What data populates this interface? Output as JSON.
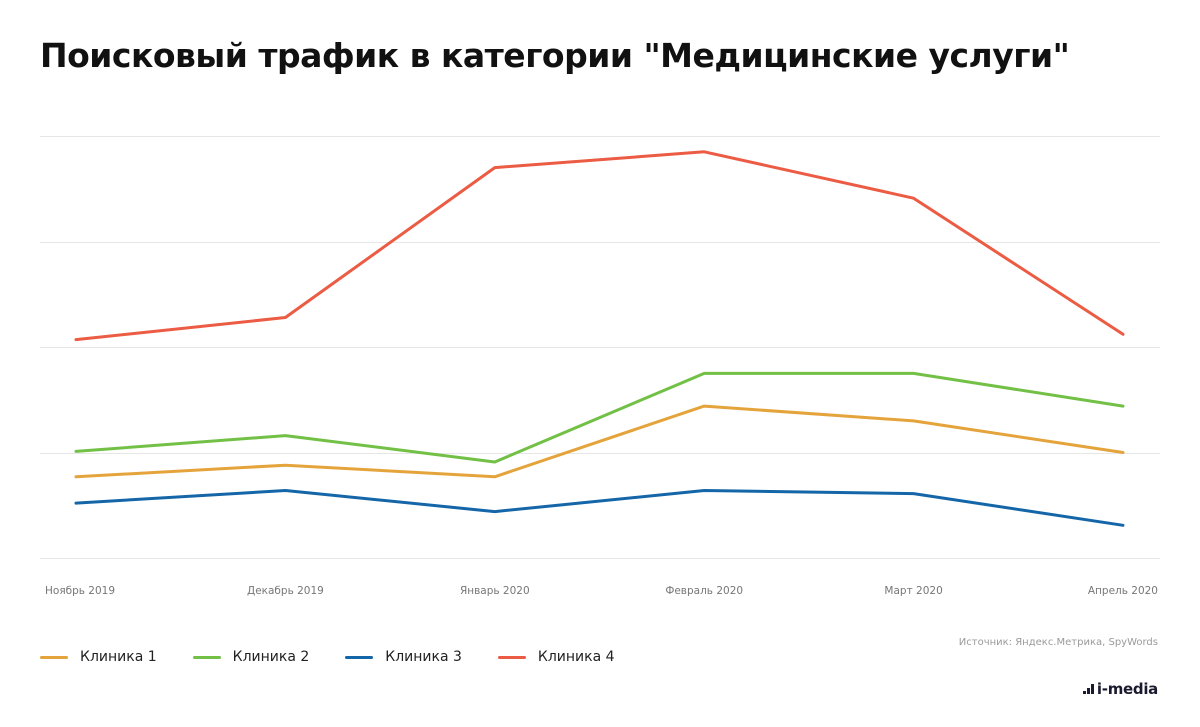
{
  "title": "Поисковый трафик в категории \"Медицинские услуги\"",
  "source": "Источник: Яндекс.Метрика, SpyWords",
  "logo": "i-media",
  "chart_data": {
    "type": "line",
    "categories": [
      "Ноябрь 2019",
      "Декабрь 2019",
      "Январь 2020",
      "Февраль 2020",
      "Март 2020",
      "Апрель 2020"
    ],
    "ylim": [
      0,
      400
    ],
    "yticks": [
      0,
      100,
      200,
      300,
      400
    ],
    "grid": true,
    "yaxis_labels_shown": false,
    "legend_position": "bottom-left",
    "series": [
      {
        "name": "Клиника 1",
        "color": "#e4a43b",
        "values": [
          77,
          88,
          77,
          144,
          130,
          100
        ]
      },
      {
        "name": "Клиника 2",
        "color": "#72c046",
        "values": [
          101,
          116,
          91,
          175,
          175,
          144
        ]
      },
      {
        "name": "Клиника 3",
        "color": "#1466a8",
        "values": [
          52,
          64,
          44,
          64,
          61,
          31
        ]
      },
      {
        "name": "Клиника 4",
        "color": "#ec5b43",
        "values": [
          207,
          228,
          370,
          385,
          341,
          212
        ]
      }
    ]
  }
}
